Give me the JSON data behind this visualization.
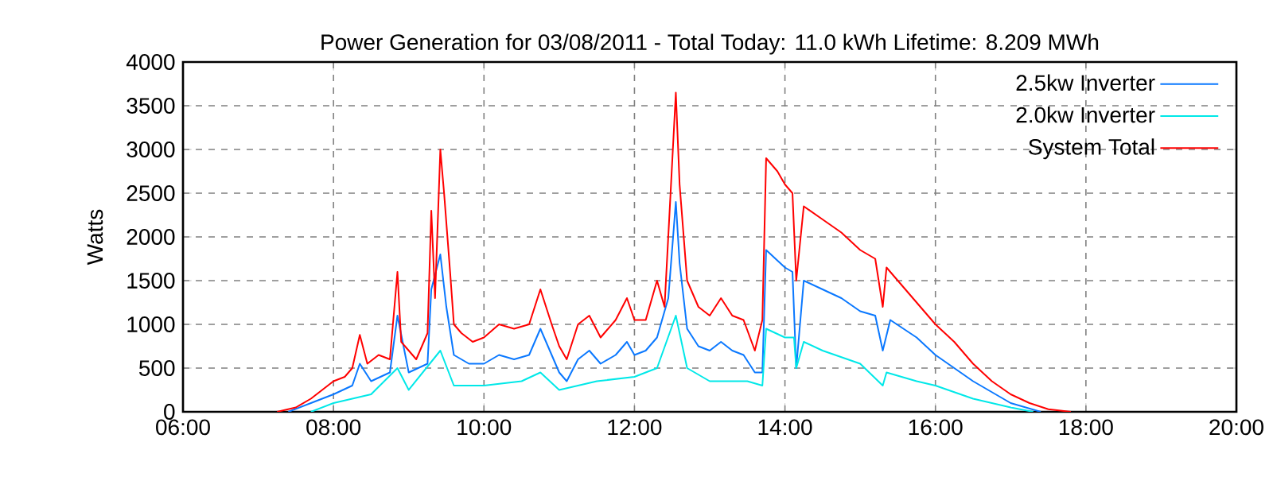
{
  "chart_data": {
    "type": "line",
    "title": "Power Generation for 03/08/2011 - Total Today: 11.0 kWh   Lifetime: 8.209 MWh",
    "ylabel": "Watts",
    "xlim": [
      6,
      20
    ],
    "xticks": [
      {
        "value": 6,
        "label": "06:00"
      },
      {
        "value": 8,
        "label": "08:00"
      },
      {
        "value": 10,
        "label": "10:00"
      },
      {
        "value": 12,
        "label": "12:00"
      },
      {
        "value": 14,
        "label": "14:00"
      },
      {
        "value": 16,
        "label": "16:00"
      },
      {
        "value": 18,
        "label": "18:00"
      },
      {
        "value": 20,
        "label": "20:00"
      }
    ],
    "ylim": [
      0,
      4000
    ],
    "yticks": [
      0,
      500,
      1000,
      1500,
      2000,
      2500,
      3000,
      3500,
      4000
    ],
    "grid": true,
    "legend": "top right",
    "marker": "none",
    "line_style": "solid",
    "series": [
      {
        "name": "2.5kw Inverter",
        "color": "#0a78ff",
        "x": [
          7.4,
          7.7,
          8.0,
          8.25,
          8.35,
          8.5,
          8.75,
          8.85,
          9.0,
          9.25,
          9.3,
          9.42,
          9.5,
          9.6,
          9.8,
          10.0,
          10.2,
          10.4,
          10.6,
          10.75,
          10.9,
          11.0,
          11.1,
          11.25,
          11.4,
          11.55,
          11.75,
          11.9,
          12.0,
          12.15,
          12.3,
          12.45,
          12.55,
          12.6,
          12.7,
          12.85,
          13.0,
          13.15,
          13.3,
          13.45,
          13.6,
          13.7,
          13.75,
          14.0,
          14.1,
          14.15,
          14.25,
          14.5,
          14.75,
          15.0,
          15.2,
          15.3,
          15.4,
          15.75,
          16.0,
          16.5,
          17.0,
          17.4
        ],
        "values": [
          0,
          100,
          200,
          300,
          550,
          350,
          450,
          1100,
          450,
          550,
          1400,
          1800,
          1200,
          650,
          550,
          550,
          650,
          600,
          650,
          950,
          650,
          450,
          350,
          600,
          700,
          550,
          650,
          800,
          650,
          700,
          850,
          1300,
          2400,
          1700,
          950,
          750,
          700,
          800,
          700,
          650,
          450,
          450,
          1850,
          1650,
          1600,
          500,
          1500,
          1400,
          1300,
          1150,
          1100,
          700,
          1050,
          850,
          650,
          350,
          100,
          0
        ]
      },
      {
        "name": "2.0kw Inverter",
        "color": "#00e8e8",
        "x": [
          7.7,
          8.0,
          8.25,
          8.5,
          8.85,
          9.0,
          9.42,
          9.6,
          10.0,
          10.5,
          10.75,
          11.0,
          11.5,
          12.0,
          12.3,
          12.55,
          12.7,
          13.0,
          13.5,
          13.7,
          13.75,
          14.0,
          14.12,
          14.15,
          14.25,
          14.5,
          15.0,
          15.3,
          15.35,
          15.75,
          16.0,
          16.5,
          17.0,
          17.3
        ],
        "values": [
          0,
          100,
          150,
          200,
          500,
          250,
          700,
          300,
          300,
          350,
          450,
          250,
          350,
          400,
          500,
          1100,
          500,
          350,
          350,
          300,
          950,
          850,
          850,
          500,
          800,
          700,
          550,
          300,
          450,
          350,
          300,
          150,
          50,
          0
        ]
      },
      {
        "name": "System Total",
        "color": "#ff0000",
        "x": [
          7.25,
          7.5,
          7.7,
          7.85,
          8.0,
          8.15,
          8.25,
          8.35,
          8.45,
          8.6,
          8.75,
          8.85,
          8.9,
          9.0,
          9.1,
          9.25,
          9.3,
          9.35,
          9.42,
          9.47,
          9.55,
          9.6,
          9.7,
          9.85,
          10.0,
          10.2,
          10.4,
          10.6,
          10.75,
          10.9,
          11.0,
          11.1,
          11.25,
          11.4,
          11.55,
          11.75,
          11.9,
          12.0,
          12.15,
          12.3,
          12.4,
          12.48,
          12.55,
          12.6,
          12.7,
          12.85,
          13.0,
          13.15,
          13.3,
          13.45,
          13.6,
          13.7,
          13.75,
          13.9,
          14.0,
          14.1,
          14.15,
          14.25,
          14.5,
          14.75,
          15.0,
          15.2,
          15.3,
          15.35,
          15.5,
          15.75,
          16.0,
          16.25,
          16.5,
          16.75,
          17.0,
          17.25,
          17.5,
          17.8
        ],
        "values": [
          0,
          50,
          150,
          250,
          350,
          400,
          500,
          880,
          550,
          650,
          600,
          1600,
          800,
          700,
          600,
          900,
          2300,
          1300,
          3000,
          2500,
          1600,
          1000,
          900,
          800,
          850,
          1000,
          950,
          1000,
          1400,
          1000,
          750,
          600,
          1000,
          1100,
          850,
          1050,
          1300,
          1050,
          1050,
          1500,
          1200,
          2500,
          3650,
          2600,
          1500,
          1200,
          1100,
          1300,
          1100,
          1050,
          700,
          1050,
          2900,
          2750,
          2600,
          2500,
          1500,
          2350,
          2200,
          2050,
          1850,
          1750,
          1200,
          1650,
          1500,
          1250,
          1000,
          800,
          550,
          350,
          200,
          100,
          30,
          0
        ]
      }
    ]
  }
}
